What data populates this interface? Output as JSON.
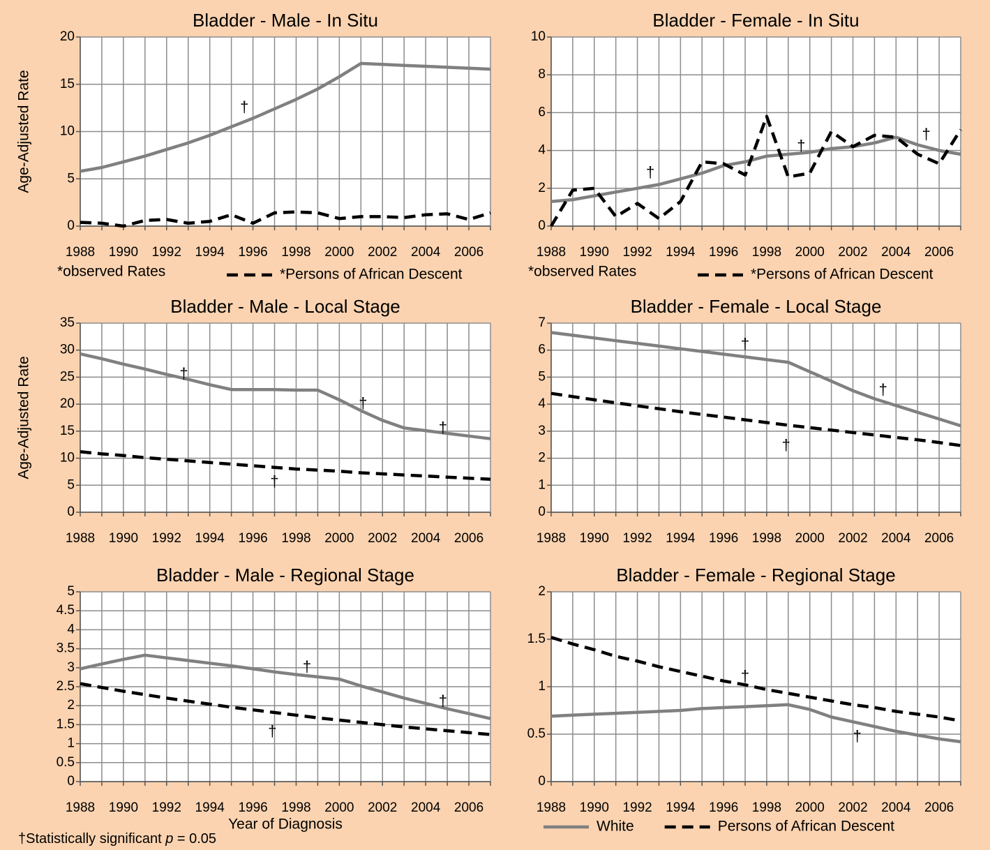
{
  "chart_data": [
    {
      "type": "line",
      "title": "Bladder - Male - In Situ",
      "y_label": "Age-Adjusted Rate",
      "note": "*observed Rates",
      "legend": true,
      "categories": [
        1988,
        null,
        1990,
        null,
        1992,
        null,
        1994,
        null,
        1996,
        null,
        1998,
        null,
        2000,
        null,
        2002,
        null,
        2004,
        null,
        2006,
        null
      ],
      "ylim": [
        0,
        20
      ],
      "yticks": [
        0,
        5,
        10,
        15,
        20
      ],
      "grid": true,
      "series": [
        {
          "color": "#808080",
          "style": "solid",
          "values": [
            5.8,
            6.2,
            6.8,
            7.4,
            8.1,
            8.8,
            9.6,
            10.5,
            11.4,
            12.4,
            13.4,
            14.5,
            15.8,
            17.2,
            17.1,
            17.0,
            16.9,
            16.8,
            16.7,
            16.6
          ]
        },
        {
          "name": "*Persons of African Descent",
          "color": "#000000",
          "style": "dashed",
          "values": [
            0.4,
            0.3,
            0.0,
            0.6,
            0.7,
            0.3,
            0.5,
            1.2,
            0.3,
            1.4,
            1.5,
            1.4,
            0.8,
            1.0,
            1.0,
            0.9,
            1.2,
            1.3,
            0.7,
            1.4
          ]
        }
      ],
      "annotations": [
        {
          "text": "†",
          "x": 1995.6,
          "y": 12.5
        }
      ]
    },
    {
      "type": "line",
      "title": "Bladder - Female - In Situ",
      "note": "*observed Rates",
      "legend": true,
      "categories": [
        1988,
        null,
        1990,
        null,
        1992,
        null,
        1994,
        null,
        1996,
        null,
        1998,
        null,
        2000,
        null,
        2002,
        null,
        2004,
        null,
        2006,
        null
      ],
      "ylim": [
        0,
        10
      ],
      "yticks": [
        0,
        2,
        4,
        6,
        8,
        10
      ],
      "grid": true,
      "series": [
        {
          "color": "#808080",
          "style": "solid",
          "values": [
            1.3,
            1.4,
            1.6,
            1.8,
            2.0,
            2.2,
            2.5,
            2.8,
            3.2,
            3.4,
            3.7,
            3.8,
            3.9,
            4.1,
            4.2,
            4.4,
            4.7,
            4.3,
            4.0,
            3.8
          ]
        },
        {
          "name": "*Persons of African Descent",
          "color": "#000000",
          "style": "dashed",
          "values": [
            0.0,
            1.9,
            2.0,
            0.5,
            1.2,
            0.4,
            1.3,
            3.4,
            3.3,
            2.7,
            5.8,
            2.6,
            2.8,
            5.0,
            4.2,
            4.8,
            4.7,
            3.8,
            3.3,
            5.1
          ]
        }
      ],
      "annotations": [
        {
          "text": "†",
          "x": 1992.6,
          "y": 2.8
        },
        {
          "text": "†",
          "x": 1999.6,
          "y": 4.2
        },
        {
          "text": "†",
          "x": 2005.4,
          "y": 4.8
        }
      ]
    },
    {
      "type": "line",
      "title": "Bladder - Male - Local Stage",
      "y_label": "Age-Adjusted Rate",
      "legend": false,
      "categories": [
        1988,
        null,
        1990,
        null,
        1992,
        null,
        1994,
        null,
        1996,
        null,
        1998,
        null,
        2000,
        null,
        2002,
        null,
        2004,
        null,
        2006,
        null
      ],
      "ylim": [
        0,
        35
      ],
      "yticks": [
        0,
        5,
        10,
        15,
        20,
        25,
        30,
        35
      ],
      "grid": true,
      "series": [
        {
          "color": "#808080",
          "style": "solid",
          "values": [
            29.3,
            28.4,
            27.4,
            26.5,
            25.5,
            24.6,
            23.6,
            22.7,
            22.7,
            22.7,
            22.6,
            22.6,
            20.8,
            18.8,
            17.0,
            15.6,
            15.1,
            14.6,
            14.1,
            13.6
          ]
        },
        {
          "color": "#000000",
          "style": "dashed",
          "values": [
            11.2,
            10.8,
            10.5,
            10.1,
            9.8,
            9.5,
            9.2,
            8.9,
            8.6,
            8.3,
            8.0,
            7.8,
            7.6,
            7.3,
            7.1,
            6.9,
            6.7,
            6.5,
            6.3,
            6.1
          ]
        }
      ],
      "annotations": [
        {
          "text": "†",
          "x": 1992.8,
          "y": 25.5
        },
        {
          "text": "†",
          "x": 2001.1,
          "y": 20.0
        },
        {
          "text": "†",
          "x": 2004.8,
          "y": 15.5
        },
        {
          "text": "†",
          "x": 1997.0,
          "y": 5.5
        }
      ]
    },
    {
      "type": "line",
      "title": "Bladder - Female - Local Stage",
      "legend": false,
      "categories": [
        1988,
        null,
        1990,
        null,
        1992,
        null,
        1994,
        null,
        1996,
        null,
        1998,
        null,
        2000,
        null,
        2002,
        null,
        2004,
        null,
        2006,
        null
      ],
      "ylim": [
        0,
        7
      ],
      "yticks": [
        0,
        1,
        2,
        3,
        4,
        5,
        6,
        7
      ],
      "grid": true,
      "series": [
        {
          "color": "#808080",
          "style": "solid",
          "values": [
            6.65,
            6.55,
            6.45,
            6.35,
            6.25,
            6.15,
            6.05,
            5.95,
            5.85,
            5.75,
            5.65,
            5.55,
            5.2,
            4.85,
            4.5,
            4.2,
            3.95,
            3.7,
            3.45,
            3.2
          ]
        },
        {
          "color": "#000000",
          "style": "dashed",
          "values": [
            4.4,
            4.28,
            4.16,
            4.05,
            3.94,
            3.83,
            3.72,
            3.62,
            3.52,
            3.42,
            3.32,
            3.22,
            3.13,
            3.04,
            2.95,
            2.86,
            2.77,
            2.68,
            2.58,
            2.47
          ]
        }
      ],
      "annotations": [
        {
          "text": "†",
          "x": 1997.0,
          "y": 6.2
        },
        {
          "text": "†",
          "x": 2003.4,
          "y": 4.5
        },
        {
          "text": "†",
          "x": 1998.9,
          "y": 2.45
        }
      ]
    },
    {
      "type": "line",
      "title": "Bladder - Male - Regional Stage",
      "x_label": "Year of Diagnosis",
      "legend": false,
      "categories": [
        1988,
        null,
        1990,
        null,
        1992,
        null,
        1994,
        null,
        1996,
        null,
        1998,
        null,
        2000,
        null,
        2002,
        null,
        2004,
        null,
        2006,
        null
      ],
      "ylim": [
        0,
        5
      ],
      "yticks": [
        0,
        0.5,
        1,
        1.5,
        2,
        2.5,
        3,
        3.5,
        4,
        4.5,
        5
      ],
      "grid": true,
      "series": [
        {
          "color": "#808080",
          "style": "solid",
          "values": [
            2.97,
            3.1,
            3.22,
            3.33,
            3.26,
            3.19,
            3.12,
            3.05,
            2.97,
            2.89,
            2.82,
            2.76,
            2.7,
            2.52,
            2.36,
            2.2,
            2.06,
            1.92,
            1.79,
            1.66
          ]
        },
        {
          "color": "#000000",
          "style": "dashed",
          "values": [
            2.58,
            2.48,
            2.38,
            2.29,
            2.2,
            2.12,
            2.04,
            1.96,
            1.89,
            1.82,
            1.75,
            1.68,
            1.62,
            1.56,
            1.5,
            1.44,
            1.39,
            1.34,
            1.29,
            1.24
          ]
        }
      ],
      "annotations": [
        {
          "text": "†",
          "x": 1998.5,
          "y": 3.0
        },
        {
          "text": "†",
          "x": 2004.8,
          "y": 2.1
        },
        {
          "text": "†",
          "x": 1996.9,
          "y": 1.3
        }
      ]
    },
    {
      "type": "line",
      "title": "Bladder - Female - Regional Stage",
      "legend": true,
      "categories": [
        1988,
        null,
        1990,
        null,
        1992,
        null,
        1994,
        null,
        1996,
        null,
        1998,
        null,
        2000,
        null,
        2002,
        null,
        2004,
        null,
        2006,
        null
      ],
      "ylim": [
        0,
        2
      ],
      "yticks": [
        0,
        0.5,
        1,
        1.5,
        2
      ],
      "grid": true,
      "series": [
        {
          "name": "White",
          "color": "#808080",
          "style": "solid",
          "values": [
            0.69,
            0.7,
            0.71,
            0.72,
            0.73,
            0.74,
            0.75,
            0.77,
            0.78,
            0.79,
            0.8,
            0.81,
            0.76,
            0.68,
            0.63,
            0.58,
            0.53,
            0.49,
            0.45,
            0.42
          ]
        },
        {
          "name": "Persons of African Descent",
          "color": "#000000",
          "style": "dashed",
          "values": [
            1.52,
            1.45,
            1.39,
            1.32,
            1.27,
            1.21,
            1.16,
            1.11,
            1.06,
            1.02,
            0.97,
            0.93,
            0.89,
            0.85,
            0.81,
            0.78,
            0.74,
            0.71,
            0.68,
            0.64
          ]
        }
      ],
      "annotations": [
        {
          "text": "†",
          "x": 1997.0,
          "y": 1.1
        },
        {
          "text": "†",
          "x": 2002.2,
          "y": 0.47
        }
      ]
    }
  ],
  "footnote": {
    "text": "†Statistically significant ",
    "italic": "p",
    "rest": " = 0.05"
  }
}
